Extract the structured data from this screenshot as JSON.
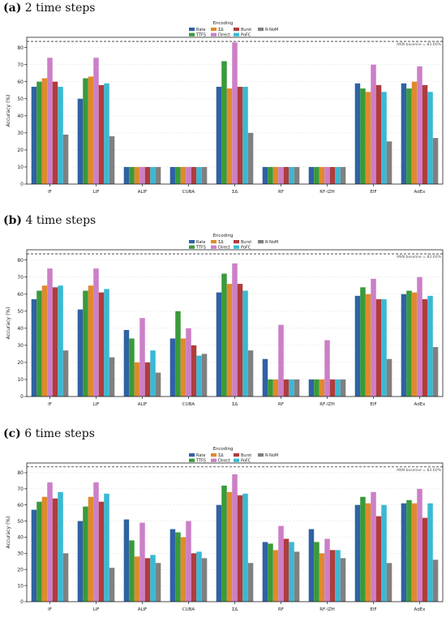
{
  "chart_data": [
    {
      "type": "bar",
      "panel_letter": "(a)",
      "title": "2 time steps",
      "ylabel": "Accuracy (%)",
      "xlabel": "",
      "ylim": [
        0,
        86
      ],
      "yticks": [
        0,
        10,
        20,
        30,
        40,
        50,
        60,
        70,
        80
      ],
      "grid": true,
      "legend_title": "Encoding",
      "legend_placement": "top-center",
      "baseline_label": "ANN baseline = 83.60%",
      "baseline_value": 83.6,
      "categories": [
        "IF",
        "LIF",
        "ALIF",
        "CUBA",
        "ΣΔ",
        "RF",
        "RF-IZH",
        "EIF",
        "AdEx"
      ],
      "series": [
        {
          "name": "Rate",
          "color": "#2f62a4",
          "values": [
            57,
            50,
            10,
            10,
            57,
            10,
            10,
            59,
            59
          ]
        },
        {
          "name": "TTFS",
          "color": "#3a9a3a",
          "values": [
            60,
            62,
            10,
            10,
            72,
            10,
            10,
            56,
            56
          ]
        },
        {
          "name": "ΣΔ",
          "color": "#e08a2c",
          "values": [
            62,
            63,
            10,
            10,
            56,
            10,
            10,
            54,
            60
          ]
        },
        {
          "name": "Direct",
          "color": "#cc7fc7",
          "values": [
            74,
            74,
            10,
            10,
            83,
            10,
            10,
            70,
            69
          ]
        },
        {
          "name": "Burst",
          "color": "#b03c3c",
          "values": [
            60,
            58,
            10,
            10,
            57,
            10,
            10,
            58,
            58
          ]
        },
        {
          "name": "PoFC",
          "color": "#3ab9d4",
          "values": [
            57,
            59,
            10,
            10,
            57,
            10,
            10,
            54,
            54
          ]
        },
        {
          "name": "R-NoM",
          "color": "#808080",
          "values": [
            29,
            28,
            10,
            10,
            30,
            10,
            10,
            25,
            27
          ]
        }
      ]
    },
    {
      "type": "bar",
      "panel_letter": "(b)",
      "title": "4 time steps",
      "ylabel": "Accuracy (%)",
      "xlabel": "",
      "ylim": [
        0,
        86
      ],
      "yticks": [
        0,
        10,
        20,
        30,
        40,
        50,
        60,
        70,
        80
      ],
      "grid": true,
      "legend_title": "Encoding",
      "legend_placement": "top-center",
      "baseline_label": "ANN baseline = 83.60%",
      "baseline_value": 83.6,
      "categories": [
        "IF",
        "LIF",
        "ALIF",
        "CUBA",
        "ΣΔ",
        "RF",
        "RF-IZH",
        "EIF",
        "AdEx"
      ],
      "series": [
        {
          "name": "Rate",
          "color": "#2f62a4",
          "values": [
            57,
            51,
            39,
            34,
            61,
            22,
            10,
            59,
            60
          ]
        },
        {
          "name": "TTFS",
          "color": "#3a9a3a",
          "values": [
            62,
            62,
            34,
            50,
            72,
            10,
            10,
            64,
            62
          ]
        },
        {
          "name": "ΣΔ",
          "color": "#e08a2c",
          "values": [
            65,
            65,
            20,
            34,
            66,
            10,
            10,
            60,
            61
          ]
        },
        {
          "name": "Direct",
          "color": "#cc7fc7",
          "values": [
            75,
            75,
            46,
            40,
            78,
            42,
            33,
            69,
            70
          ]
        },
        {
          "name": "Burst",
          "color": "#b03c3c",
          "values": [
            64,
            61,
            20,
            30,
            66,
            10,
            10,
            57,
            57
          ]
        },
        {
          "name": "PoFC",
          "color": "#3ab9d4",
          "values": [
            65,
            63,
            27,
            24,
            62,
            10,
            10,
            57,
            59
          ]
        },
        {
          "name": "R-NoM",
          "color": "#808080",
          "values": [
            27,
            23,
            14,
            25,
            27,
            10,
            10,
            22,
            29
          ]
        }
      ]
    },
    {
      "type": "bar",
      "panel_letter": "(c)",
      "title": "6 time steps",
      "ylabel": "Accuracy (%)",
      "xlabel": "",
      "ylim": [
        0,
        86
      ],
      "yticks": [
        0,
        10,
        20,
        30,
        40,
        50,
        60,
        70,
        80
      ],
      "grid": true,
      "legend_title": "Encoding",
      "legend_placement": "top-center",
      "baseline_label": "ANN baseline = 83.60%",
      "baseline_value": 83.6,
      "categories": [
        "IF",
        "LIF",
        "ALIF",
        "CUBA",
        "ΣΔ",
        "RF",
        "RF-IZH",
        "EIF",
        "AdEx"
      ],
      "series": [
        {
          "name": "Rate",
          "color": "#2f62a4",
          "values": [
            57,
            50,
            51,
            45,
            60,
            37,
            45,
            60,
            61
          ]
        },
        {
          "name": "TTFS",
          "color": "#3a9a3a",
          "values": [
            62,
            59,
            38,
            43,
            72,
            36,
            37,
            65,
            63
          ]
        },
        {
          "name": "ΣΔ",
          "color": "#e08a2c",
          "values": [
            65,
            65,
            28,
            40,
            68,
            32,
            30,
            61,
            61
          ]
        },
        {
          "name": "Direct",
          "color": "#cc7fc7",
          "values": [
            74,
            74,
            49,
            50,
            79,
            47,
            39,
            68,
            70
          ]
        },
        {
          "name": "Burst",
          "color": "#b03c3c",
          "values": [
            64,
            62,
            27,
            30,
            66,
            39,
            32,
            53,
            52
          ]
        },
        {
          "name": "PoFC",
          "color": "#3ab9d4",
          "values": [
            68,
            67,
            29,
            31,
            67,
            37,
            32,
            60,
            61
          ]
        },
        {
          "name": "R-NoM",
          "color": "#808080",
          "values": [
            30,
            21,
            24,
            27,
            24,
            31,
            27,
            24,
            26
          ]
        }
      ]
    }
  ]
}
